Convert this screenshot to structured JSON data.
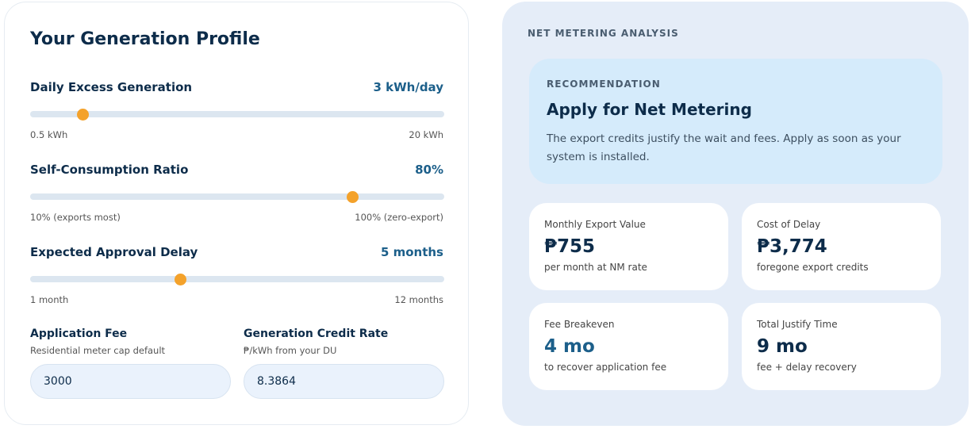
{
  "profile": {
    "title": "Your Generation Profile",
    "sliders": [
      {
        "label": "Daily Excess Generation",
        "value": 3,
        "value_label": "3 kWh/day",
        "min": {
          "value": 0.5,
          "label": "0.5 kWh"
        },
        "max": {
          "value": 20,
          "label": "20 kWh"
        }
      },
      {
        "label": "Self-Consumption Ratio",
        "value": 80,
        "value_label": "80%",
        "min": {
          "value": 10,
          "label": "10% (exports most)"
        },
        "max": {
          "value": 100,
          "label": "100% (zero-export)"
        }
      },
      {
        "label": "Expected Approval Delay",
        "value": 5,
        "value_label": "5 months",
        "min": {
          "value": 1,
          "label": "1 month"
        },
        "max": {
          "value": 12,
          "label": "12 months"
        }
      }
    ],
    "inputs": [
      {
        "label": "Application Fee",
        "hint": "Residential meter cap default",
        "value": "3000"
      },
      {
        "label": "Generation Credit Rate",
        "hint": "₱/kWh from your DU",
        "value": "8.3864"
      }
    ]
  },
  "analysis": {
    "title": "NET METERING ANALYSIS",
    "recommendation": {
      "eyebrow": "RECOMMENDATION",
      "heading": "Apply for Net Metering",
      "text": "The export credits justify the wait and fees. Apply as soon as your system is installed."
    },
    "metrics": [
      {
        "label": "Monthly Export Value",
        "value": "₱755",
        "note": "per month at NM rate"
      },
      {
        "label": "Cost of Delay",
        "value": "₱3,774",
        "note": "foregone export credits"
      },
      {
        "label": "Fee Breakeven",
        "value": "4 mo",
        "note": "to recover application fee"
      },
      {
        "label": "Total Justify Time",
        "value": "9 mo",
        "note": "fee + delay recovery"
      }
    ]
  }
}
